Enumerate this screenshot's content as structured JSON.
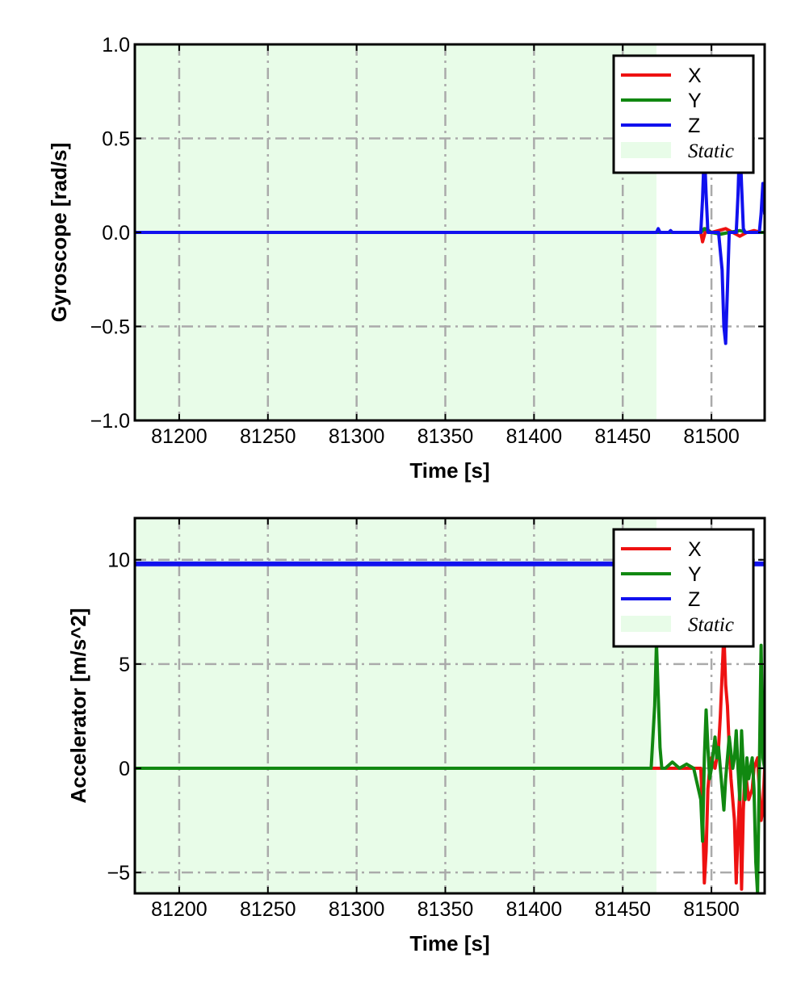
{
  "colors": {
    "x": "#ee1111",
    "y": "#118811",
    "z": "#1111ee",
    "static_fill": "#e8fce8",
    "grid": "#aaaaaa"
  },
  "chart_data": [
    {
      "type": "line",
      "xlabel": "Time [s]",
      "ylabel": "Gyroscope [rad/s]",
      "xlim": [
        81175,
        81530
      ],
      "ylim": [
        -1.0,
        1.0
      ],
      "xticks": [
        81200,
        81250,
        81300,
        81350,
        81400,
        81450,
        81500
      ],
      "xtick_labels": [
        "81200",
        "81250",
        "81300",
        "81350",
        "81400",
        "81450",
        "81500"
      ],
      "yticks": [
        -1.0,
        -0.5,
        0.0,
        0.5,
        1.0
      ],
      "ytick_labels": [
        "−1.0",
        "−0.5",
        "0.0",
        "0.5",
        "1.0"
      ],
      "grid": true,
      "legend_position": "top-right",
      "static_region": [
        81175,
        81469
      ],
      "series": [
        {
          "name": "X",
          "color": "#ee1111",
          "x": [
            81175,
            81469,
            81494,
            81495,
            81497,
            81500,
            81504,
            81508,
            81512,
            81516,
            81520,
            81524,
            81528,
            81530
          ],
          "y": [
            0.0,
            0.0,
            0.0,
            -0.05,
            0.02,
            0.0,
            0.01,
            0.02,
            0.0,
            -0.02,
            0.0,
            0.01,
            0.0,
            0.0
          ]
        },
        {
          "name": "Y",
          "color": "#118811",
          "x": [
            81175,
            81469,
            81494,
            81496,
            81500,
            81505,
            81510,
            81516,
            81520,
            81525,
            81530
          ],
          "y": [
            0.0,
            0.0,
            0.0,
            0.02,
            0.0,
            -0.01,
            0.0,
            0.01,
            0.0,
            0.0,
            0.0
          ]
        },
        {
          "name": "Z",
          "color": "#1111ee",
          "x": [
            81175,
            81469,
            81470,
            81471,
            81476,
            81477,
            81478,
            81494,
            81495,
            81496,
            81497,
            81498,
            81500,
            81504,
            81506,
            81507,
            81508,
            81509,
            81510,
            81514,
            81515,
            81516,
            81517,
            81518,
            81519,
            81524,
            81527,
            81528,
            81529,
            81530
          ],
          "y": [
            0.0,
            0.0,
            0.02,
            0.0,
            0.0,
            0.01,
            0.0,
            0.0,
            0.18,
            0.45,
            0.2,
            0.0,
            0.0,
            0.0,
            -0.2,
            -0.5,
            -0.59,
            -0.3,
            0.0,
            0.0,
            0.2,
            0.5,
            0.25,
            0.02,
            0.0,
            0.0,
            0.0,
            0.1,
            0.26,
            0.1
          ]
        },
        {
          "name": "Static",
          "fill": "#e8fce8",
          "x": [
            81175,
            81469
          ]
        }
      ]
    },
    {
      "type": "line",
      "xlabel": "Time [s]",
      "ylabel": "Accelerator [m/s^2]",
      "xlim": [
        81175,
        81530
      ],
      "ylim": [
        -6.0,
        12.0
      ],
      "xticks": [
        81200,
        81250,
        81300,
        81350,
        81400,
        81450,
        81500
      ],
      "xtick_labels": [
        "81200",
        "81250",
        "81300",
        "81350",
        "81400",
        "81450",
        "81500"
      ],
      "yticks": [
        -5,
        0,
        5,
        10
      ],
      "ytick_labels": [
        "−5",
        "0",
        "5",
        "10"
      ],
      "grid": true,
      "legend_position": "top-right",
      "static_region": [
        81175,
        81469
      ],
      "series": [
        {
          "name": "X",
          "color": "#ee1111",
          "x": [
            81175,
            81469,
            81494,
            81495,
            81496,
            81497,
            81498,
            81499,
            81500,
            81502,
            81504,
            81505,
            81506,
            81507,
            81508,
            81509,
            81510,
            81511,
            81513,
            81514,
            81515,
            81516,
            81517,
            81518,
            81519,
            81521,
            81523,
            81524,
            81526,
            81527,
            81528,
            81529,
            81530
          ],
          "y": [
            0.0,
            0.0,
            0.0,
            -2.0,
            -5.5,
            -4.0,
            -1.0,
            0.0,
            0.5,
            0.0,
            1.0,
            2.5,
            4.5,
            6.5,
            4.0,
            3.0,
            1.0,
            -0.5,
            -2.5,
            -5.5,
            -3.0,
            -1.0,
            -5.8,
            -2.0,
            0.0,
            -1.5,
            -1.0,
            0.0,
            0.5,
            -1.0,
            -2.5,
            -2.0,
            0.0
          ]
        },
        {
          "name": "Y",
          "color": "#118811",
          "x": [
            81175,
            81466,
            81468,
            81469,
            81470,
            81471,
            81472,
            81474,
            81478,
            81482,
            81486,
            81490,
            81494,
            81495,
            81496,
            81497,
            81498,
            81499,
            81500,
            81502,
            81503,
            81504,
            81505,
            81506,
            81507,
            81508,
            81510,
            81512,
            81513,
            81514,
            81515,
            81516,
            81517,
            81518,
            81519,
            81520,
            81521,
            81523,
            81524,
            81525,
            81526,
            81527,
            81528,
            81529,
            81530
          ],
          "y": [
            0.0,
            0.0,
            3.0,
            6.0,
            3.5,
            1.0,
            0.0,
            0.0,
            0.3,
            0.0,
            0.2,
            0.0,
            -1.5,
            -3.5,
            0.5,
            2.8,
            1.0,
            -0.5,
            0.0,
            1.5,
            0.5,
            1.0,
            0.0,
            -1.0,
            -2.0,
            -0.5,
            1.5,
            0.0,
            0.5,
            1.8,
            0.0,
            -1.5,
            1.8,
            0.0,
            -1.5,
            0.5,
            -0.5,
            0.5,
            -1.0,
            -4.5,
            -6.0,
            0.0,
            5.9,
            0.5,
            0.0
          ]
        },
        {
          "name": "Z",
          "color": "#1111ee",
          "x": [
            81175,
            81530
          ],
          "y": [
            9.8,
            9.8
          ]
        },
        {
          "name": "Static",
          "fill": "#e8fce8",
          "x": [
            81175,
            81469
          ]
        }
      ]
    }
  ]
}
